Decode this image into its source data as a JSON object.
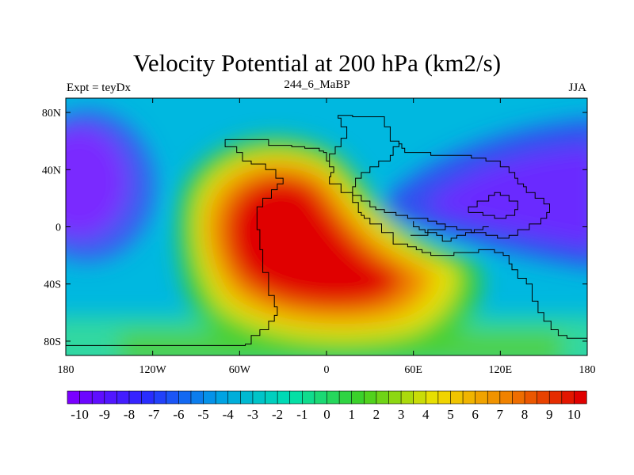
{
  "title": "Velocity Potential at 200 hPa (km2/s)",
  "left_label": "Expt = teyDx",
  "center_label": "244_6_MaBP",
  "right_label": "JJA",
  "map": {
    "lon_range": [
      -180,
      180
    ],
    "lat_range": [
      -90,
      90
    ],
    "lat_ticks": [
      {
        "value": 80,
        "label": "80N"
      },
      {
        "value": 40,
        "label": "40N"
      },
      {
        "value": 0,
        "label": "0"
      },
      {
        "value": -40,
        "label": "40S"
      },
      {
        "value": -80,
        "label": "80S"
      }
    ],
    "lon_ticks": [
      {
        "value": -180,
        "label": "180"
      },
      {
        "value": -120,
        "label": "120W"
      },
      {
        "value": -60,
        "label": "60W"
      },
      {
        "value": 0,
        "label": "0"
      },
      {
        "value": 60,
        "label": "60E"
      },
      {
        "value": 120,
        "label": "120E"
      },
      {
        "value": 180,
        "label": "180"
      }
    ]
  },
  "colorbar": {
    "range": [
      -10.5,
      10.5
    ],
    "step": 0.5,
    "labels": [
      "-10",
      "-9",
      "-8",
      "-7",
      "-6",
      "-5",
      "-4",
      "-3",
      "-2",
      "-1",
      "0",
      "1",
      "2",
      "3",
      "4",
      "5",
      "6",
      "7",
      "8",
      "9",
      "10"
    ]
  },
  "colors": {
    "scale": [
      "#7a00ff",
      "#2a2aff",
      "#00a0e6",
      "#00e0b0",
      "#40d020",
      "#f0e000",
      "#f08000",
      "#e00000"
    ]
  }
}
